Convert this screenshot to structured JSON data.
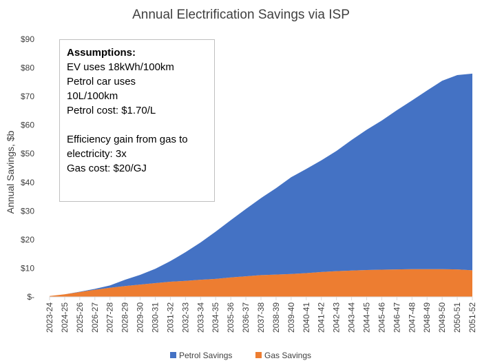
{
  "chart_data": {
    "type": "area",
    "stacked": true,
    "title": "Annual Electrification Savings via ISP",
    "ylabel": "Annual Savings, $b",
    "xlabel": "",
    "ylim": [
      0,
      90
    ],
    "yticks": [
      0,
      10,
      20,
      30,
      40,
      50,
      60,
      70,
      80,
      90
    ],
    "ytick_labels": [
      "$-",
      "$10",
      "$20",
      "$30",
      "$40",
      "$50",
      "$60",
      "$70",
      "$80",
      "$90"
    ],
    "legend_position": "bottom",
    "grid": false,
    "categories": [
      "2023-24",
      "2024-25",
      "2025-26",
      "2026-27",
      "2027-28",
      "2028-29",
      "2029-30",
      "2030-31",
      "2031-32",
      "2032-33",
      "2033-34",
      "2034-35",
      "2035-36",
      "2036-37",
      "2037-38",
      "2038-39",
      "2039-40",
      "2040-41",
      "2041-42",
      "2042-43",
      "2043-44",
      "2044-45",
      "2045-46",
      "2046-47",
      "2047-48",
      "2048-49",
      "2049-50",
      "2050-51",
      "2051-52"
    ],
    "series": [
      {
        "name": "Gas Savings",
        "color": "#ED7D31",
        "values": [
          0.3,
          0.9,
          1.7,
          2.5,
          3.2,
          3.8,
          4.3,
          4.8,
          5.3,
          5.6,
          6.0,
          6.3,
          6.8,
          7.2,
          7.6,
          7.8,
          8.0,
          8.3,
          8.7,
          9.0,
          9.2,
          9.4,
          9.5,
          9.6,
          9.7,
          9.7,
          9.7,
          9.6,
          9.3
        ]
      },
      {
        "name": "Petrol Savings",
        "color": "#4472C4",
        "values": [
          0.0,
          0.0,
          0.1,
          0.3,
          0.8,
          2.2,
          3.4,
          5.0,
          7.2,
          10.0,
          13.0,
          16.5,
          20.0,
          23.5,
          26.9,
          30.2,
          33.8,
          36.4,
          39.0,
          42.0,
          45.6,
          49.0,
          52.1,
          55.6,
          58.9,
          62.4,
          65.8,
          67.9,
          68.7
        ]
      }
    ],
    "annotation": {
      "heading": "Assumptions:",
      "lines1": [
        "EV uses 18kWh/100km",
        "Petrol car uses",
        "10L/100km",
        "Petrol cost: $1.70/L"
      ],
      "lines2": [
        "Efficiency gain from gas to",
        "electricity: 3x",
        "Gas cost: $20/GJ"
      ]
    }
  }
}
